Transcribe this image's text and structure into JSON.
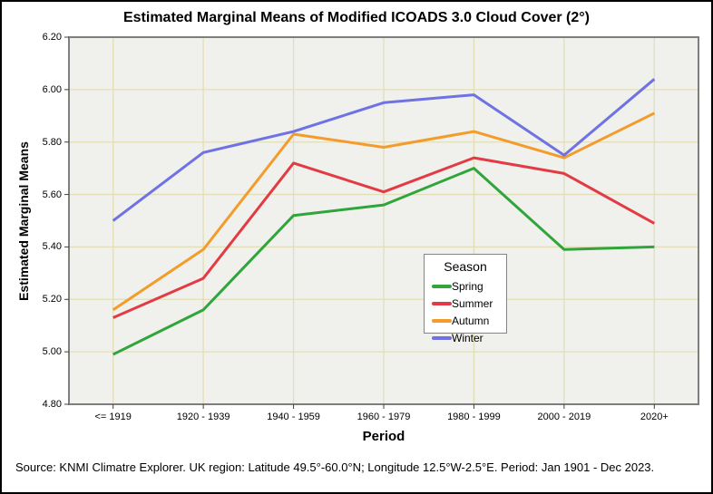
{
  "page": {
    "footer": "Source: KNMI Climatre Explorer. UK region: Latitude 49.5°-60.0°N; Longitude 12.5°W-2.5°E. Period: Jan 1901 - Dec 2023."
  },
  "chart_data": {
    "type": "line",
    "title": "Estimated Marginal Means of Modified ICOADS 3.0 Cloud Cover (2°)",
    "xlabel": "Period",
    "ylabel": "Estimated Marginal Means",
    "categories": [
      "<= 1919",
      "1920 - 1939",
      "1940 - 1959",
      "1960 - 1979",
      "1980 - 1999",
      "2000 - 2019",
      "2020+"
    ],
    "series": [
      {
        "name": "Spring",
        "color": "#2FA53A",
        "values": [
          4.99,
          5.16,
          5.52,
          5.56,
          5.7,
          5.39,
          5.4
        ]
      },
      {
        "name": "Summer",
        "color": "#E23B43",
        "values": [
          5.13,
          5.28,
          5.72,
          5.61,
          5.74,
          5.68,
          5.49
        ]
      },
      {
        "name": "Autumn",
        "color": "#F39C2B",
        "values": [
          5.16,
          5.39,
          5.83,
          5.78,
          5.84,
          5.74,
          5.91
        ]
      },
      {
        "name": "Winter",
        "color": "#6F72E4",
        "values": [
          5.5,
          5.76,
          5.84,
          5.95,
          5.98,
          5.75,
          6.04
        ]
      }
    ],
    "ylim": [
      4.8,
      6.2
    ],
    "yticks": [
      "6.20",
      "6.00",
      "5.80",
      "5.60",
      "5.40",
      "5.20",
      "5.00",
      "4.80"
    ],
    "grid": true,
    "legend": {
      "title": "Season",
      "position": "inside-right"
    },
    "colors": {
      "plot_bg": "#F0F0ED",
      "grid": "#E2DFB8",
      "frame": "#7E7E7E",
      "tick": "#404040",
      "text": "#000000"
    }
  }
}
